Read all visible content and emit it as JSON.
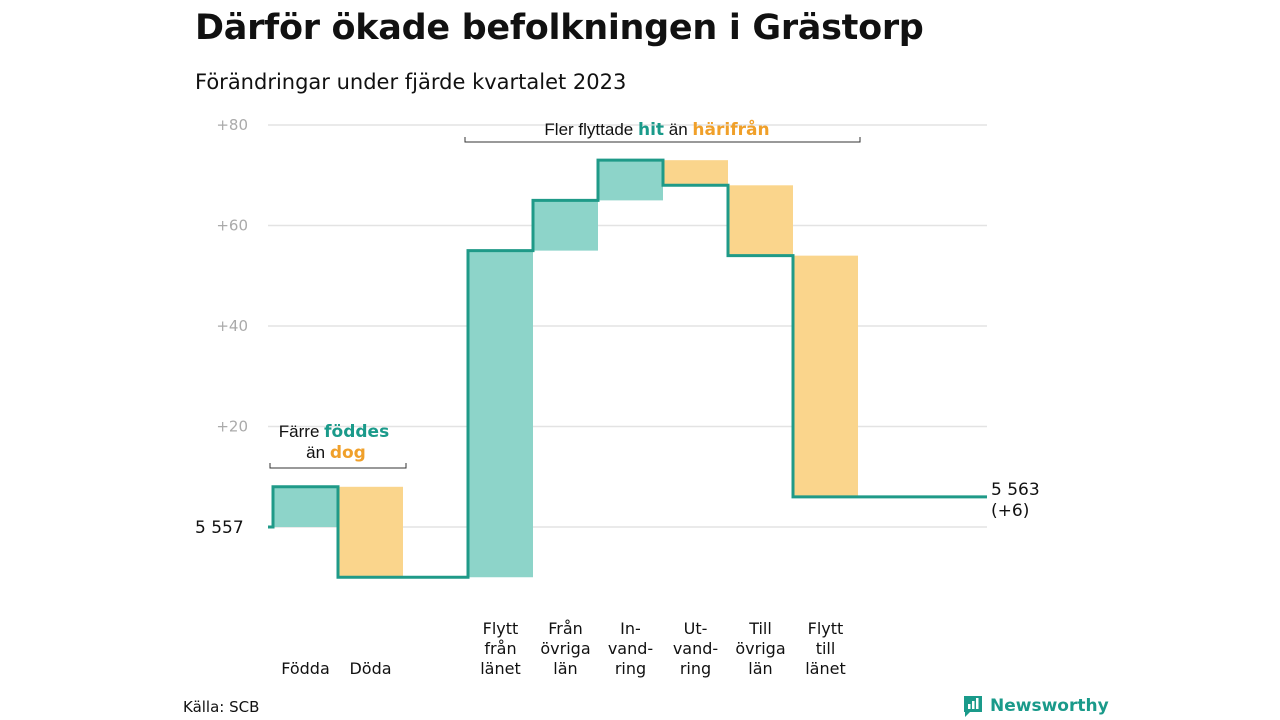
{
  "title": "Därför ökade befolkningen i Grästorp",
  "subtitle": "Förändringar under fjärde kvartalet 2023",
  "source": "Källa: SCB",
  "brand": "Newsworthy",
  "brand_icon": "newsworthy-logo-icon",
  "colors": {
    "increase": "#8dd4c9",
    "decrease": "#fad58c",
    "line": "#1f9a88",
    "highlight_hit": "#1a9a8a",
    "highlight_away": "#f0a02a",
    "grid": "#e3e3e3"
  },
  "annotations": {
    "births": {
      "line1": "Färre",
      "line1_bold": "föddes",
      "line2": "än",
      "line2_bold": "dog"
    },
    "moves": {
      "prefix": "Fler flyttade",
      "bold1": "hit",
      "middle": "än",
      "bold2": "härifrån"
    }
  },
  "chart_data": {
    "type": "waterfall",
    "start_label": "5  557",
    "end_label": [
      "5 563",
      "(+6)"
    ],
    "start_value": 0,
    "end_value": 6,
    "y_ticks": [
      "+80",
      "+60",
      "+40",
      "+20"
    ],
    "ylim": [
      -10,
      80
    ],
    "grid": true,
    "steps": [
      {
        "label": [
          "Födda"
        ],
        "change": 8,
        "type": "increase"
      },
      {
        "label": [
          "Döda"
        ],
        "change": -18,
        "type": "decrease"
      },
      {
        "label": [
          "Flytt",
          "från",
          "länet"
        ],
        "change": 65,
        "type": "increase"
      },
      {
        "label": [
          "Från",
          "övriga",
          "län"
        ],
        "change": 10,
        "type": "increase"
      },
      {
        "label": [
          "In-",
          "vand-",
          "ring"
        ],
        "change": 8,
        "type": "increase"
      },
      {
        "label": [
          "Ut-",
          "vand-",
          "ring"
        ],
        "change": -5,
        "type": "decrease"
      },
      {
        "label": [
          "Till",
          "övriga",
          "län"
        ],
        "change": -14,
        "type": "decrease"
      },
      {
        "label": [
          "Flytt",
          "till",
          "länet"
        ],
        "change": -48,
        "type": "decrease"
      }
    ]
  }
}
